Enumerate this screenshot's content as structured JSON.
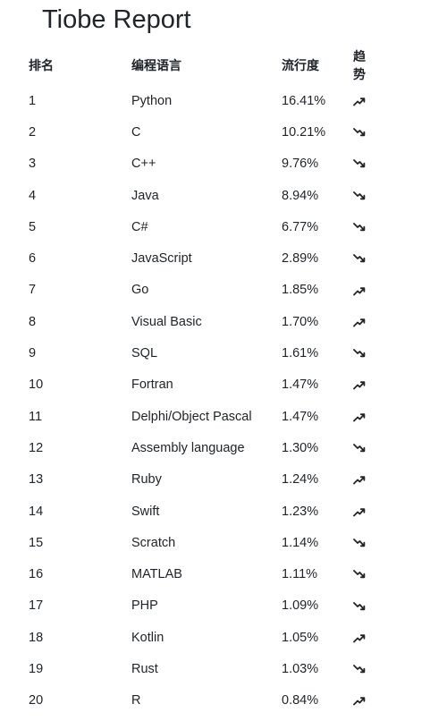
{
  "title": "Tiobe Report",
  "table": {
    "headers": {
      "rank": "排名",
      "language": "编程语言",
      "popularity": "流行度",
      "trend_line1": "趋",
      "trend_line2": "势"
    },
    "rows": [
      {
        "rank": "1",
        "language": "Python",
        "popularity": "16.41%",
        "trend": "up"
      },
      {
        "rank": "2",
        "language": "C",
        "popularity": "10.21%",
        "trend": "down"
      },
      {
        "rank": "3",
        "language": "C++",
        "popularity": "9.76%",
        "trend": "down"
      },
      {
        "rank": "4",
        "language": "Java",
        "popularity": "8.94%",
        "trend": "down"
      },
      {
        "rank": "5",
        "language": "C#",
        "popularity": "6.77%",
        "trend": "down"
      },
      {
        "rank": "6",
        "language": "JavaScript",
        "popularity": "2.89%",
        "trend": "down"
      },
      {
        "rank": "7",
        "language": "Go",
        "popularity": "1.85%",
        "trend": "up"
      },
      {
        "rank": "8",
        "language": "Visual Basic",
        "popularity": "1.70%",
        "trend": "up"
      },
      {
        "rank": "9",
        "language": "SQL",
        "popularity": "1.61%",
        "trend": "down"
      },
      {
        "rank": "10",
        "language": "Fortran",
        "popularity": "1.47%",
        "trend": "up"
      },
      {
        "rank": "11",
        "language": "Delphi/Object Pascal",
        "popularity": "1.47%",
        "trend": "up"
      },
      {
        "rank": "12",
        "language": "Assembly language",
        "popularity": "1.30%",
        "trend": "down"
      },
      {
        "rank": "13",
        "language": "Ruby",
        "popularity": "1.24%",
        "trend": "up"
      },
      {
        "rank": "14",
        "language": "Swift",
        "popularity": "1.23%",
        "trend": "up"
      },
      {
        "rank": "15",
        "language": "Scratch",
        "popularity": "1.14%",
        "trend": "down"
      },
      {
        "rank": "16",
        "language": "MATLAB",
        "popularity": "1.11%",
        "trend": "down"
      },
      {
        "rank": "17",
        "language": "PHP",
        "popularity": "1.09%",
        "trend": "down"
      },
      {
        "rank": "18",
        "language": "Kotlin",
        "popularity": "1.05%",
        "trend": "up"
      },
      {
        "rank": "19",
        "language": "Rust",
        "popularity": "1.03%",
        "trend": "down"
      },
      {
        "rank": "20",
        "language": "R",
        "popularity": "0.84%",
        "trend": "up"
      }
    ]
  },
  "icons": {
    "up": "trend-up-icon",
    "down": "trend-down-icon"
  },
  "colors": {
    "text": "#212529",
    "background": "#ffffff"
  }
}
